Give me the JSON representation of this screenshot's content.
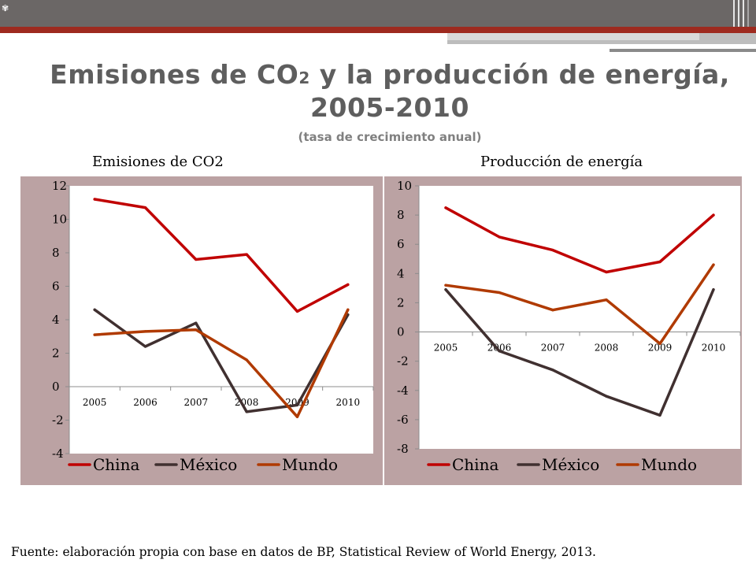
{
  "header": {
    "title_line1_a": "Emisiones de CO",
    "title_sub": "2",
    "title_line1_b": " y la producción de energía,",
    "title_line2": "2005-2010",
    "subtitle": "(tasa de crecimiento anual)"
  },
  "footer": {
    "source": "Fuente: elaboración propia con base en datos de BP, Statistical Review of World Energy, 2013."
  },
  "colors": {
    "China": "#c00000",
    "Mexico": "#403030",
    "Mundo": "#b03a00"
  },
  "chart_data": [
    {
      "type": "line",
      "title": "Emisiones de CO2",
      "x": [
        "2005",
        "2006",
        "2007",
        "2008",
        "2009",
        "2010"
      ],
      "ylim": [
        -4,
        12
      ],
      "yticks": [
        "12",
        "10",
        "8",
        "6",
        "4",
        "2",
        "0",
        "-2",
        "-4"
      ],
      "grid": false,
      "legend_position": "bottom",
      "series": [
        {
          "name": "China",
          "values": [
            11.2,
            10.7,
            7.6,
            7.9,
            4.5,
            6.1
          ]
        },
        {
          "name": "México",
          "values": [
            4.6,
            2.4,
            3.8,
            -1.5,
            -1.1,
            4.3
          ]
        },
        {
          "name": "Mundo",
          "values": [
            3.1,
            3.3,
            3.4,
            1.6,
            -1.8,
            4.6
          ]
        }
      ]
    },
    {
      "type": "line",
      "title": "Producción de energía",
      "x": [
        "2005",
        "2006",
        "2007",
        "2008",
        "2009",
        "2010"
      ],
      "ylim": [
        -8,
        10
      ],
      "yticks": [
        "10",
        "8",
        "6",
        "4",
        "2",
        "0",
        "-2",
        "-4",
        "-6",
        "-8"
      ],
      "grid": false,
      "legend_position": "bottom",
      "series": [
        {
          "name": "China",
          "values": [
            8.5,
            6.5,
            5.6,
            4.1,
            4.8,
            8.0
          ]
        },
        {
          "name": "México",
          "values": [
            2.9,
            -1.3,
            -2.6,
            -4.4,
            -5.7,
            2.9
          ]
        },
        {
          "name": "Mundo",
          "values": [
            3.2,
            2.7,
            1.5,
            2.2,
            -0.8,
            4.6
          ]
        }
      ]
    }
  ]
}
